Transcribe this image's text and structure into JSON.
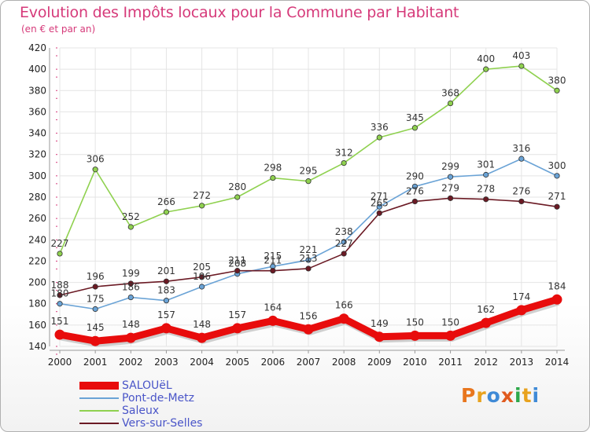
{
  "title": "Evolution des Impôts locaux pour la Commune par Habitant",
  "subtitle": "(en € et par an)",
  "logo": {
    "text": "Proxiti",
    "letter_colors": [
      "#e8761e",
      "#e8a21e",
      "#3f8ad6",
      "#e05a1e",
      "#2ea84a",
      "#e8a21e",
      "#3f8ad6"
    ]
  },
  "chart_data": {
    "type": "line",
    "title": "Evolution des Impôts locaux pour la Commune par Habitant",
    "ylabel": "(en € et par an)",
    "x": [
      "2000",
      "2001",
      "2002",
      "2003",
      "2004",
      "2005",
      "2006",
      "2007",
      "2008",
      "2009",
      "2010",
      "2011",
      "2012",
      "2013",
      "2014"
    ],
    "ylim": [
      140,
      420
    ],
    "yticks": [
      140,
      160,
      180,
      200,
      220,
      240,
      260,
      280,
      300,
      320,
      340,
      360,
      380,
      400,
      420
    ],
    "grid": true,
    "series": [
      {
        "name": "SALOUëL",
        "color": "#e80c0c",
        "values": [
          151,
          145,
          148,
          157,
          148,
          157,
          164,
          156,
          166,
          149,
          150,
          150,
          162,
          174,
          184
        ]
      },
      {
        "name": "Pont-de-Metz",
        "color": "#6aa3d6",
        "values": [
          180,
          175,
          186,
          183,
          196,
          208,
          215,
          221,
          238,
          271,
          290,
          299,
          301,
          316,
          300
        ]
      },
      {
        "name": "Saleux",
        "color": "#8fd14f",
        "values": [
          227,
          306,
          252,
          266,
          272,
          280,
          298,
          295,
          312,
          336,
          345,
          368,
          400,
          403,
          380
        ]
      },
      {
        "name": "Vers-sur-Selles",
        "color": "#6b1a24",
        "values": [
          188,
          196,
          199,
          201,
          205,
          211,
          211,
          213,
          227,
          265,
          276,
          279,
          278,
          276,
          271
        ]
      }
    ]
  }
}
